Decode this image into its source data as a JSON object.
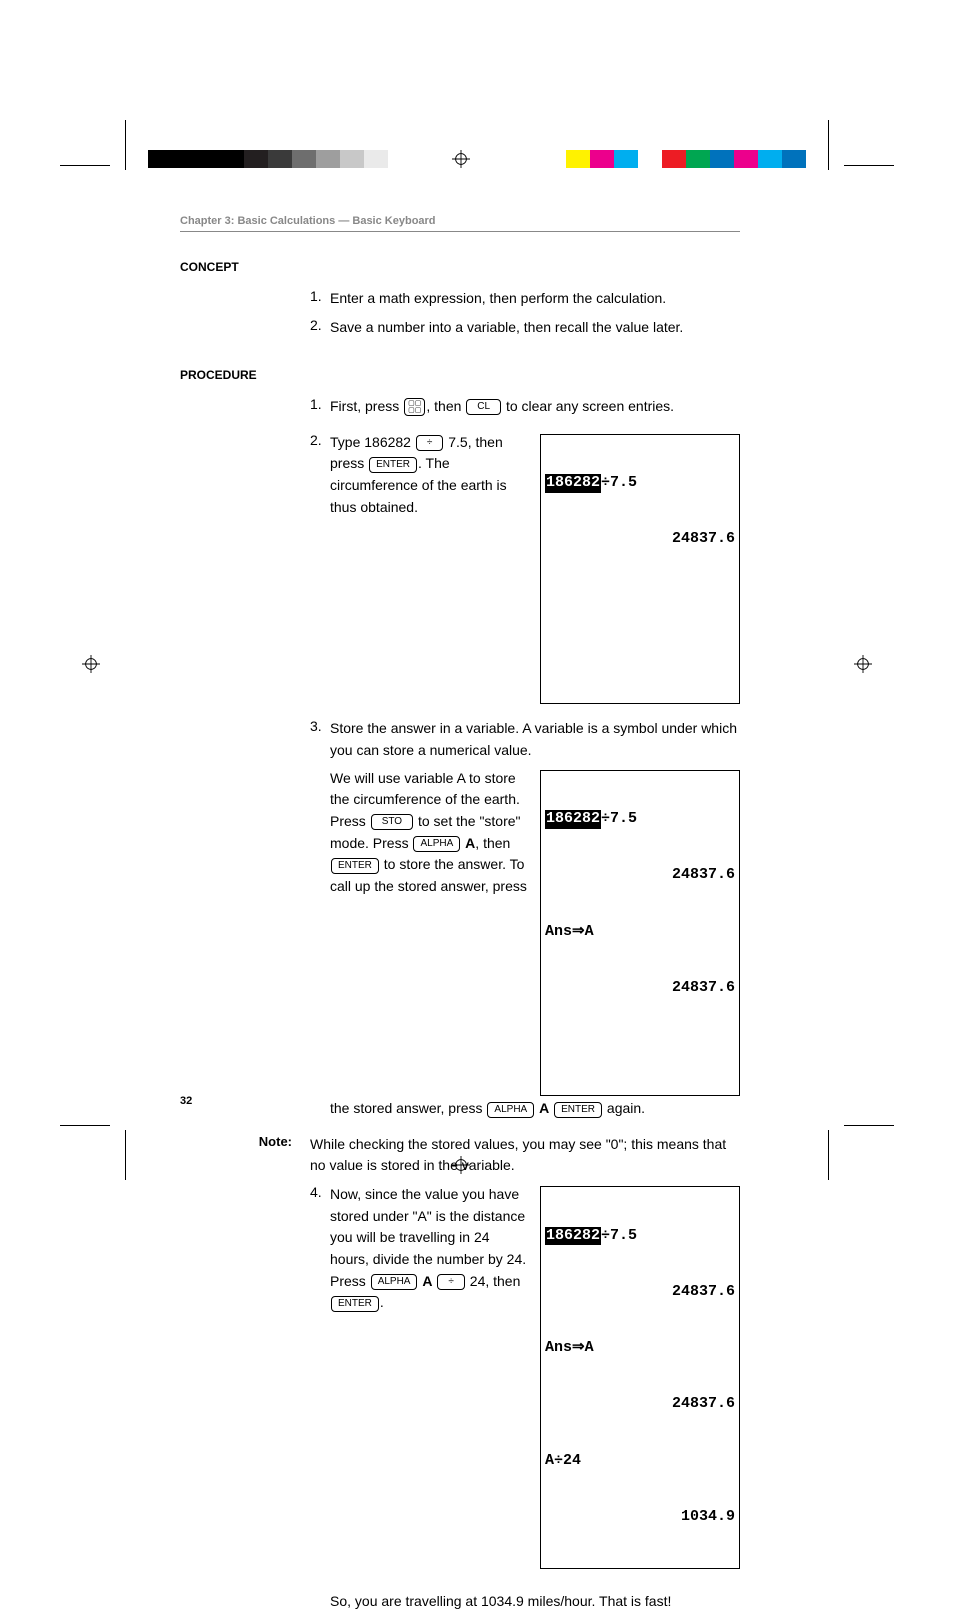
{
  "chapterTitle": "Chapter 3: Basic Calculations — Basic Keyboard",
  "concept": {
    "label": "CONCEPT",
    "items": [
      "Enter a math expression, then perform the calculation.",
      "Save a number into a variable, then recall the value later."
    ]
  },
  "procedure": {
    "label": "PROCEDURE",
    "step1": {
      "preA": "First, press ",
      "preB": ", then ",
      "post": " to clear any screen entries.",
      "keyMode": "⊞⊞",
      "keyCL": "CL"
    },
    "step2": {
      "textA": "Type 186282 ",
      "keyDiv": "÷",
      "textB": " 7.5, then press ",
      "keyEnter": "ENTER",
      "textC": ". The circumference of the earth is thus obtained."
    },
    "screen1": {
      "l1": "186282",
      "l1b": "÷7.5",
      "r1": "24837.6",
      "height_lines": 4
    },
    "step3": {
      "intro": "Store the answer in a variable. A variable is a symbol under which you can store a numerical value.",
      "textA": "We will use variable A to store the circumference of the earth. Press ",
      "keySTO": "STO",
      "textB": " to set the \"store\" mode. Press ",
      "keyALPHA": "ALPHA",
      "textC": " ",
      "bA": "A",
      "textD": ", then ",
      "keyEnter": "ENTER",
      "textE": " to store the answer. To call up the stored answer, press ",
      "textF": " again."
    },
    "screen2": {
      "l1": "186282",
      "l1b": "÷7.5",
      "r1": "24837.6",
      "l2": "Ans⇒A",
      "r2": "24837.6",
      "height_lines": 5
    },
    "note": {
      "label": "Note:",
      "body": "While checking the stored values, you may see \"0\"; this means that no value is stored in the variable."
    },
    "step4": {
      "textA": "Now, since the value you have stored under \"A\" is the distance you will be travelling in 24 hours, divide the number by 24. Press ",
      "keyALPHA": "ALPHA",
      "bA": "A",
      "keyDiv": "÷",
      "textB": " 24, then ",
      "keyEnter": "ENTER",
      "textC": "."
    },
    "screen3": {
      "l1": "186282",
      "l1b": "÷7.5",
      "r1": "24837.6",
      "l2": "Ans⇒A",
      "r2": "24837.6",
      "l3": "A÷24",
      "r3": "1034.9"
    },
    "final": "So, you are travelling at 1034.9 miles/hour. That is fast!"
  },
  "pageNumber": "32",
  "colorbars": {
    "left": [
      "#000000",
      "#000000",
      "#000000",
      "#000000",
      "#231f20",
      "#3a3a3a",
      "#6e6e6e",
      "#9e9e9e",
      "#c8c8c8",
      "#eaeaea"
    ],
    "right": [
      "#fff200",
      "#ec008c",
      "#00aeef",
      "#ffffff",
      "#ed1c24",
      "#00a651",
      "#0072bc",
      "#ec008c",
      "#00aeef",
      "#0072bc"
    ]
  }
}
